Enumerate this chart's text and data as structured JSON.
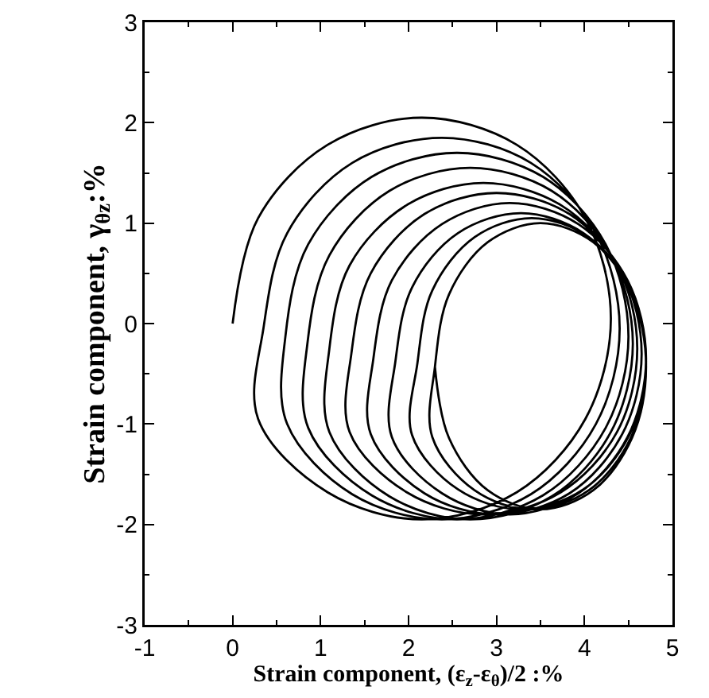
{
  "chart_data": {
    "type": "line",
    "xlabel": "Strain component, (ε$_{z}$-ε$_{θ}$)/2 :%",
    "ylabel": "Strain component, γ$_{θz}$:%",
    "xlim": [
      -1,
      5
    ],
    "xticks": [
      -1,
      0,
      1,
      2,
      3,
      4,
      5
    ],
    "ylim": [
      -3,
      3
    ],
    "yticks": [
      -3,
      -2,
      -1,
      0,
      1,
      2,
      3
    ],
    "marker": "none",
    "line_style": "solid",
    "series": [
      {
        "color": "#000000",
        "x": [
          0,
          0.29,
          1.08,
          2.15,
          3.23,
          4.01,
          4.3,
          4.01,
          3.23,
          2.15,
          1.08,
          0.29,
          0.35,
          0.62,
          1.36,
          2.38,
          3.39,
          4.13,
          4.4,
          4.13,
          3.39,
          2.38,
          1.36,
          0.62,
          0.6,
          0.86,
          1.58,
          2.55,
          3.53,
          4.24,
          4.5,
          4.24,
          3.53,
          2.55,
          1.58,
          0.86,
          0.85,
          1.1,
          1.78,
          2.7,
          3.63,
          4.3,
          4.55,
          4.3,
          3.63,
          2.7,
          1.78,
          1.1,
          1.1,
          1.33,
          1.98,
          2.85,
          3.73,
          4.37,
          4.6,
          4.37,
          3.73,
          2.85,
          1.98,
          1.33,
          1.35,
          1.57,
          2.18,
          3.0,
          3.83,
          4.43,
          4.65,
          4.43,
          3.83,
          3.0,
          2.18,
          1.57,
          1.6,
          1.81,
          2.38,
          3.15,
          3.93,
          4.49,
          4.7,
          4.49,
          3.93,
          3.15,
          2.38,
          1.81,
          1.85,
          2.04,
          2.56,
          3.28,
          3.99,
          4.51,
          4.7,
          4.51,
          3.99,
          3.28,
          2.56,
          2.04,
          2.1,
          2.27,
          2.75,
          3.4,
          4.05,
          4.53,
          4.7,
          4.53,
          4.05,
          3.4,
          2.75,
          2.27,
          2.3,
          2.46,
          2.9,
          3.5,
          4.1,
          4.54,
          4.7,
          4.54,
          4.1,
          3.5,
          2.9,
          2.46,
          2.3
        ],
        "values": [
          0,
          1.05,
          1.78,
          2.05,
          1.78,
          1.05,
          0.05,
          -0.95,
          -1.68,
          -1.95,
          -1.68,
          -0.95,
          -0.05,
          0.9,
          1.6,
          1.85,
          1.6,
          0.9,
          -0.05,
          -1.0,
          -1.7,
          -1.95,
          -1.7,
          -1.0,
          -0.13,
          0.79,
          1.46,
          1.7,
          1.46,
          0.79,
          -0.13,
          -1.04,
          -1.71,
          -1.95,
          -1.71,
          -1.04,
          -0.2,
          0.68,
          1.32,
          1.55,
          1.32,
          0.68,
          -0.2,
          -1.08,
          -1.72,
          -1.95,
          -1.72,
          -1.08,
          -0.25,
          0.58,
          1.18,
          1.4,
          1.18,
          0.58,
          -0.25,
          -1.08,
          -1.68,
          -1.9,
          -1.68,
          -1.08,
          -0.3,
          0.5,
          1.09,
          1.3,
          1.09,
          0.5,
          -0.3,
          -1.1,
          -1.69,
          -1.9,
          -1.69,
          -1.1,
          -0.35,
          0.43,
          0.99,
          1.2,
          0.99,
          0.43,
          -0.35,
          -1.13,
          -1.69,
          -1.9,
          -1.69,
          -1.13,
          -0.38,
          0.36,
          0.9,
          1.1,
          0.9,
          0.36,
          -0.38,
          -1.11,
          -1.65,
          -1.85,
          -1.65,
          -1.11,
          -0.4,
          0.33,
          0.86,
          1.05,
          0.86,
          0.33,
          -0.4,
          -1.13,
          -1.66,
          -1.85,
          -1.66,
          -1.13,
          -0.43,
          0.29,
          0.81,
          1.0,
          0.81,
          0.29,
          -0.43,
          -1.14,
          -1.66,
          -1.85,
          -1.66,
          -1.14,
          -0.43
        ]
      }
    ]
  }
}
